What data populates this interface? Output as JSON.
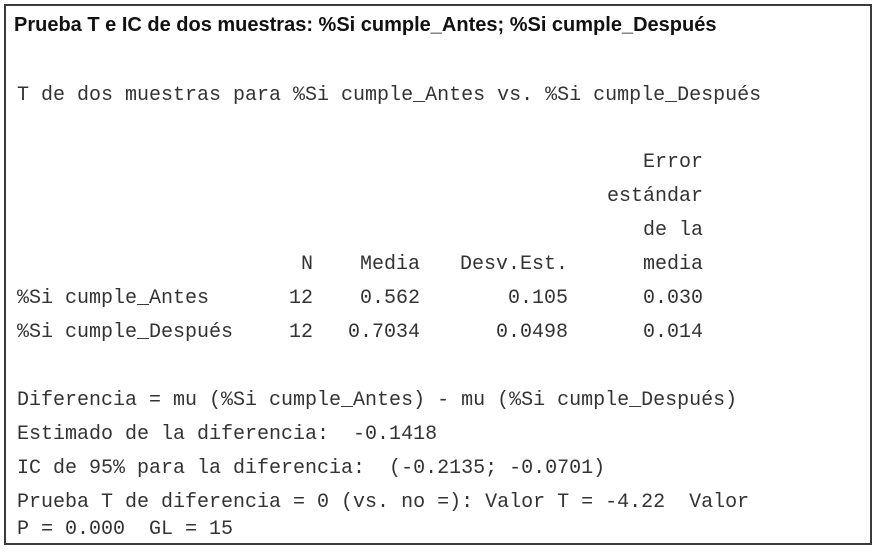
{
  "title": "Prueba T e IC de dos muestras: %Si cumple_Antes; %Si cumple_Después",
  "subtitle": "T de dos muestras para %Si cumple_Antes vs. %Si cumple_Después",
  "table": {
    "headers": {
      "n": "N",
      "media": "Media",
      "desv": "Desv.Est.",
      "error_line1": "Error",
      "error_line2": "estándar",
      "error_line3": "de la",
      "error_line4": "media"
    },
    "rows": [
      {
        "name": "%Si cumple_Antes",
        "n": "12",
        "media": "0.562",
        "desv": "0.105",
        "error": "0.030"
      },
      {
        "name": "%Si cumple_Después",
        "n": "12",
        "media": "0.7034",
        "desv": "0.0498",
        "error": "0.014"
      }
    ]
  },
  "results": {
    "diferencia": "Diferencia = mu (%Si cumple_Antes) - mu (%Si cumple_Después)",
    "estimado": "Estimado de la diferencia:  -0.1418",
    "ic": "IC de 95% para la diferencia:  (-0.2135; -0.0701)",
    "prueba_line1": "Prueba T de diferencia = 0 (vs. no =): Valor T = -4.22  Valor",
    "prueba_line2": "P = 0.000  GL = 15"
  }
}
